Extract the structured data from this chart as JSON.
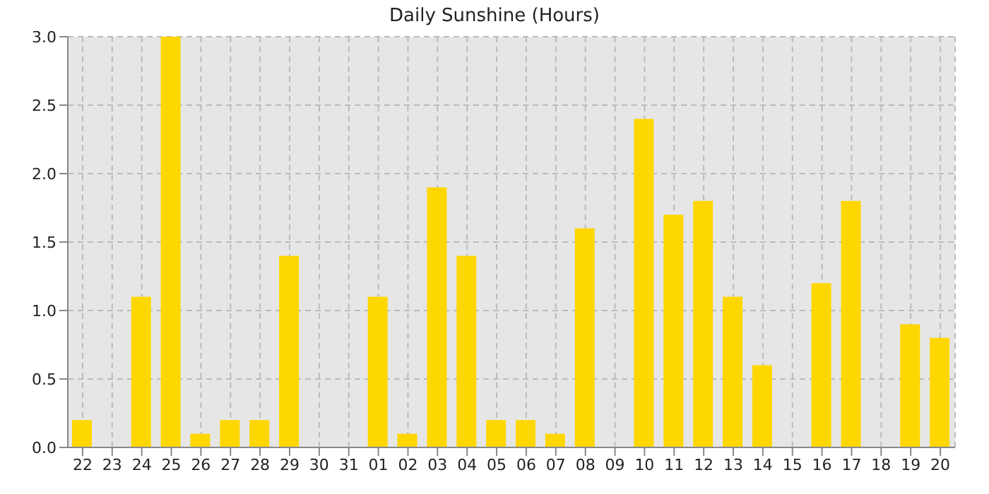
{
  "chart_data": {
    "type": "bar",
    "title": "Daily Sunshine (Hours)",
    "categories": [
      "22",
      "23",
      "24",
      "25",
      "26",
      "27",
      "28",
      "29",
      "30",
      "31",
      "01",
      "02",
      "03",
      "04",
      "05",
      "06",
      "07",
      "08",
      "09",
      "10",
      "11",
      "12",
      "13",
      "14",
      "15",
      "16",
      "17",
      "18",
      "19",
      "20"
    ],
    "values": [
      0.2,
      0,
      1.1,
      3.0,
      0.1,
      0.2,
      0.2,
      1.4,
      0,
      0,
      1.1,
      0.1,
      1.9,
      1.4,
      0.2,
      0.2,
      0.1,
      1.6,
      0,
      2.4,
      1.7,
      1.8,
      1.1,
      0.6,
      0,
      1.2,
      1.8,
      0,
      0.9,
      0.8
    ],
    "color": "#ffd700",
    "ylim": [
      0,
      3
    ],
    "yticks": [
      {
        "value": 0,
        "label": "0.0"
      },
      {
        "value": 0.5,
        "label": "0.5"
      },
      {
        "value": 1,
        "label": "1.0"
      },
      {
        "value": 1.5,
        "label": "1.5"
      },
      {
        "value": 2,
        "label": "2.0"
      },
      {
        "value": 2.5,
        "label": "2.5"
      },
      {
        "value": 3,
        "label": "3.0"
      }
    ],
    "grid": true
  }
}
